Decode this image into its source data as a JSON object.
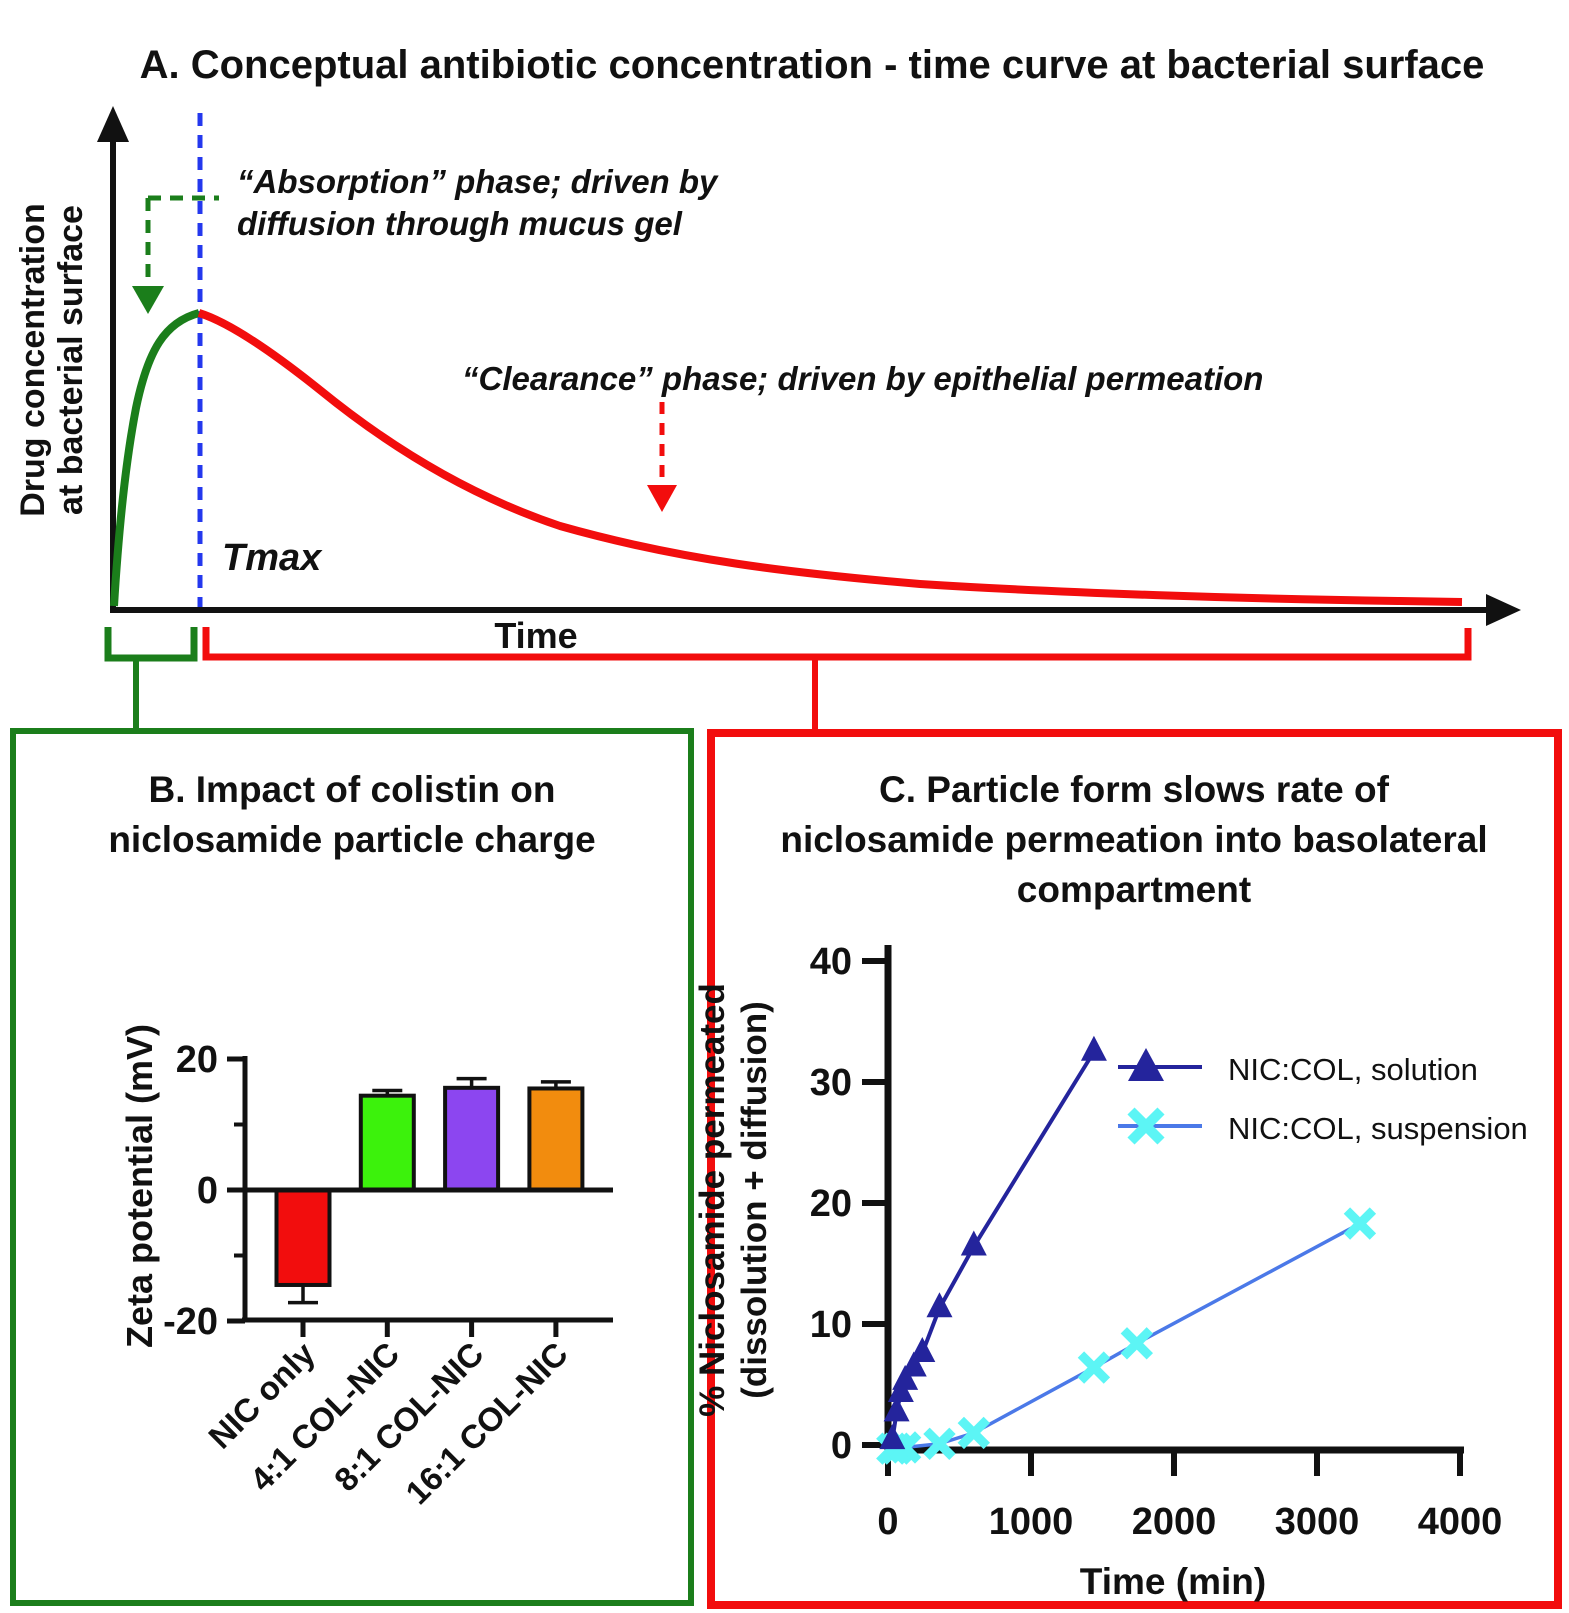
{
  "panelA": {
    "title": "A. Conceptual antibiotic concentration - time curve at bacterial surface",
    "ylabel_line1": "Drug concentration",
    "ylabel_line2": "at bacterial surface",
    "xlabel": "Time",
    "tmax": "Tmax",
    "absorption_line1": "“Absorption” phase; driven by",
    "absorption_line2": "diffusion through mucus gel",
    "clearance": "“Clearance” phase; driven by epithelial permeation"
  },
  "panelB": {
    "title_line1": "B. Impact of colistin on",
    "title_line2": "niclosamide particle charge",
    "ylabel": "Zeta potential (mV)"
  },
  "panelC": {
    "title_line1": "C. Particle form slows rate of",
    "title_line2": "niclosamide permeation into basolateral",
    "title_line3": "compartment",
    "ylabel_line1": "% Niclosamide permeated",
    "ylabel_line2": "(dissolution + diffusion)",
    "xlabel": "Time (min)"
  },
  "colors": {
    "green": "#1b7e1b",
    "red": "#f20d0d",
    "blue": "#2438ee",
    "navy": "#24249c",
    "cyan": "#5cf5f5",
    "suspension_line_blue": "#4b79e8",
    "bar_red": "#f20d0d",
    "bar_green": "#3cf20c",
    "bar_purple": "#8c46f0",
    "bar_orange": "#f28c0e",
    "black": "#111111"
  },
  "chart_data": [
    {
      "panel": "A",
      "type": "line",
      "title": "A. Conceptual antibiotic concentration - time curve at bacterial surface",
      "xlabel": "Time",
      "ylabel": "Drug concentration at bacterial surface",
      "axes_numeric": false,
      "series": [
        {
          "name": "Absorption phase",
          "color": "#1b7e1b",
          "description": "steep rise from origin up to peak concentration at Tmax"
        },
        {
          "name": "Clearance phase",
          "color": "#f20d0d",
          "description": "exponential-like decay after Tmax approaching the time axis"
        }
      ],
      "annotations": [
        "“Absorption” phase; driven by diffusion through mucus gel",
        "“Clearance” phase; driven by epithelial permeation",
        "Tmax (blue dashed vertical line at peak)"
      ]
    },
    {
      "panel": "B",
      "type": "bar",
      "title": "B. Impact of colistin on niclosamide particle charge",
      "xlabel": "",
      "ylabel": "Zeta potential (mV)",
      "categories": [
        "NIC only",
        "4:1 COL-NIC",
        "8:1 COL-NIC",
        "16:1 COL-NIC"
      ],
      "values": [
        -14.5,
        14.4,
        15.6,
        15.5
      ],
      "errors": [
        2.7,
        0.8,
        1.4,
        1.0
      ],
      "bar_colors": [
        "#f20d0d",
        "#3cf20c",
        "#8c46f0",
        "#f28c0e"
      ],
      "ylim": [
        -20,
        20
      ],
      "yticks_major": [
        20,
        0,
        -20
      ],
      "yticks_minor": [
        10,
        -10
      ],
      "grid": false
    },
    {
      "panel": "C",
      "type": "scatter-line",
      "title": "C. Particle form slows rate of niclosamide permeation into basolateral compartment",
      "xlabel": "Time (min)",
      "ylabel": "% Niclosamide permeated (dissolution + diffusion)",
      "xlim": [
        0,
        4000
      ],
      "ylim": [
        0,
        40
      ],
      "xticks": [
        0,
        1000,
        2000,
        3000,
        4000
      ],
      "yticks": [
        0,
        10,
        20,
        30,
        40
      ],
      "legend_position": "inside upper right",
      "series": [
        {
          "name": "NIC:COL, solution",
          "marker": "triangle",
          "marker_color": "#24249c",
          "line_color": "#24249c",
          "x": [
            30,
            60,
            90,
            120,
            180,
            240,
            360,
            600,
            1440
          ],
          "y": [
            0.4,
            2.7,
            4.3,
            5.3,
            6.4,
            7.6,
            11.3,
            16.4,
            32.5
          ]
        },
        {
          "name": "NIC:COL, suspension",
          "marker": "x",
          "marker_color": "#5cf5f5",
          "line_color": "#4b79e8",
          "x": [
            30,
            60,
            120,
            360,
            600,
            1440,
            1740,
            3300
          ],
          "y": [
            -0.3,
            -0.3,
            -0.2,
            0.1,
            1.0,
            6.4,
            8.4,
            18.3
          ]
        }
      ]
    }
  ]
}
